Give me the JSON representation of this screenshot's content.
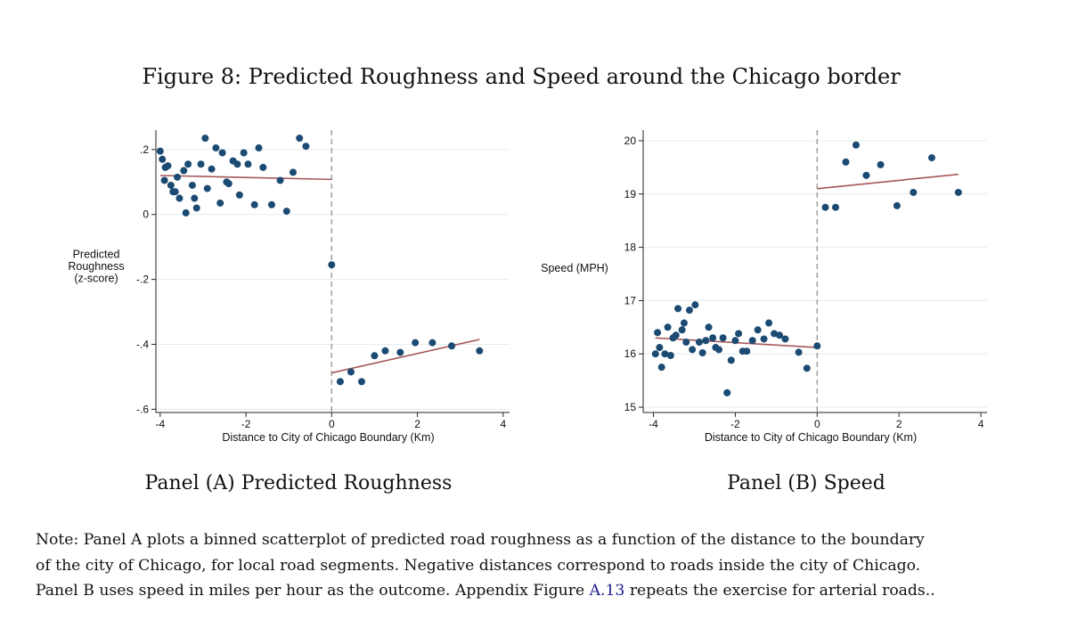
{
  "figure": {
    "title": "Figure 8: Predicted Roughness and Speed around the Chicago border",
    "note_part1": "Note: Panel A plots a binned scatterplot of predicted road roughness as a function of the distance to the boundary",
    "note_part2": "of the city of Chicago, for local road segments. Negative distances correspond to roads inside the city of Chicago.",
    "note_part3_pre": "Panel B uses speed in miles per hour as the outcome. Appendix Figure ",
    "note_link": "A.13",
    "note_part3_post": " repeats the exercise for arterial roads.."
  },
  "chart_data": [
    {
      "type": "scatter",
      "caption": "Panel (A) Predicted Roughness",
      "xlabel": "Distance to City of Chicago Boundary (Km)",
      "ylabel_lines": [
        "Predicted",
        "Roughness",
        "(z-score)"
      ],
      "xlim": [
        -4.1,
        4.15
      ],
      "ylim": [
        -0.61,
        0.26
      ],
      "xticks": [
        -4,
        -2,
        0,
        2,
        4
      ],
      "xtick_labels": [
        "-4",
        "-2",
        "0",
        "2",
        "4"
      ],
      "yticks": [
        -0.6,
        -0.4,
        -0.2,
        0,
        0.2
      ],
      "ytick_labels": [
        "-.6",
        "-.4",
        "-.2",
        "0",
        ".2"
      ],
      "grid": true,
      "cutoff_x": 0,
      "points": [
        [
          -4.0,
          0.195
        ],
        [
          -3.95,
          0.17
        ],
        [
          -3.88,
          0.145
        ],
        [
          -3.82,
          0.15
        ],
        [
          -3.9,
          0.105
        ],
        [
          -3.75,
          0.09
        ],
        [
          -3.7,
          0.07
        ],
        [
          -3.65,
          0.07
        ],
        [
          -3.6,
          0.115
        ],
        [
          -3.55,
          0.05
        ],
        [
          -3.45,
          0.135
        ],
        [
          -3.4,
          0.005
        ],
        [
          -3.35,
          0.155
        ],
        [
          -3.25,
          0.09
        ],
        [
          -3.2,
          0.05
        ],
        [
          -3.15,
          0.02
        ],
        [
          -3.05,
          0.155
        ],
        [
          -2.95,
          0.235
        ],
        [
          -2.9,
          0.08
        ],
        [
          -2.8,
          0.14
        ],
        [
          -2.7,
          0.205
        ],
        [
          -2.6,
          0.035
        ],
        [
          -2.55,
          0.19
        ],
        [
          -2.45,
          0.1
        ],
        [
          -2.4,
          0.095
        ],
        [
          -2.3,
          0.165
        ],
        [
          -2.2,
          0.155
        ],
        [
          -2.15,
          0.06
        ],
        [
          -2.05,
          0.19
        ],
        [
          -1.95,
          0.155
        ],
        [
          -1.8,
          0.03
        ],
        [
          -1.7,
          0.205
        ],
        [
          -1.6,
          0.145
        ],
        [
          -1.4,
          0.03
        ],
        [
          -1.2,
          0.105
        ],
        [
          -1.05,
          0.01
        ],
        [
          -0.9,
          0.13
        ],
        [
          -0.75,
          0.235
        ],
        [
          -0.6,
          0.21
        ],
        [
          0.0,
          -0.155
        ],
        [
          0.2,
          -0.515
        ],
        [
          0.45,
          -0.485
        ],
        [
          0.7,
          -0.515
        ],
        [
          1.0,
          -0.435
        ],
        [
          1.25,
          -0.42
        ],
        [
          1.6,
          -0.425
        ],
        [
          1.95,
          -0.395
        ],
        [
          2.35,
          -0.395
        ],
        [
          2.8,
          -0.405
        ],
        [
          3.45,
          -0.42
        ]
      ],
      "fit_lines": [
        {
          "x": [
            -4.0,
            0.0
          ],
          "y": [
            0.12,
            0.108
          ]
        },
        {
          "x": [
            0.0,
            3.45
          ],
          "y": [
            -0.488,
            -0.385
          ]
        }
      ]
    },
    {
      "type": "scatter",
      "caption": "Panel (B) Speed",
      "xlabel": "Distance to City of Chicago Boundary (Km)",
      "ylabel_lines": [
        "Speed (MPH)"
      ],
      "xlim": [
        -4.25,
        4.15
      ],
      "ylim": [
        14.9,
        20.2
      ],
      "xticks": [
        -4,
        -2,
        0,
        2,
        4
      ],
      "xtick_labels": [
        "-4",
        "-2",
        "0",
        "2",
        "4"
      ],
      "yticks": [
        15,
        16,
        17,
        18,
        19,
        20
      ],
      "ytick_labels": [
        "15",
        "16",
        "17",
        "18",
        "19",
        "20"
      ],
      "grid": true,
      "cutoff_x": 0,
      "points": [
        [
          -3.95,
          16.0
        ],
        [
          -3.9,
          16.4
        ],
        [
          -3.85,
          16.12
        ],
        [
          -3.8,
          15.75
        ],
        [
          -3.72,
          16.0
        ],
        [
          -3.65,
          16.5
        ],
        [
          -3.58,
          15.97
        ],
        [
          -3.52,
          16.3
        ],
        [
          -3.45,
          16.35
        ],
        [
          -3.4,
          16.85
        ],
        [
          -3.3,
          16.45
        ],
        [
          -3.25,
          16.58
        ],
        [
          -3.2,
          16.22
        ],
        [
          -3.12,
          16.82
        ],
        [
          -3.05,
          16.08
        ],
        [
          -2.98,
          16.92
        ],
        [
          -2.88,
          16.22
        ],
        [
          -2.8,
          16.02
        ],
        [
          -2.72,
          16.25
        ],
        [
          -2.65,
          16.5
        ],
        [
          -2.55,
          16.3
        ],
        [
          -2.48,
          16.12
        ],
        [
          -2.4,
          16.08
        ],
        [
          -2.3,
          16.3
        ],
        [
          -2.2,
          15.27
        ],
        [
          -2.1,
          15.88
        ],
        [
          -2.0,
          16.25
        ],
        [
          -1.92,
          16.38
        ],
        [
          -1.82,
          16.05
        ],
        [
          -1.72,
          16.05
        ],
        [
          -1.58,
          16.25
        ],
        [
          -1.45,
          16.45
        ],
        [
          -1.3,
          16.28
        ],
        [
          -1.18,
          16.58
        ],
        [
          -1.05,
          16.38
        ],
        [
          -0.92,
          16.35
        ],
        [
          -0.78,
          16.28
        ],
        [
          -0.45,
          16.03
        ],
        [
          -0.25,
          15.73
        ],
        [
          0.0,
          16.15
        ],
        [
          0.2,
          18.75
        ],
        [
          0.45,
          18.75
        ],
        [
          0.7,
          19.6
        ],
        [
          0.95,
          19.92
        ],
        [
          1.2,
          19.35
        ],
        [
          1.55,
          19.55
        ],
        [
          1.95,
          18.78
        ],
        [
          2.35,
          19.03
        ],
        [
          2.8,
          19.68
        ],
        [
          3.45,
          19.03
        ]
      ],
      "fit_lines": [
        {
          "x": [
            -3.95,
            0.0
          ],
          "y": [
            16.3,
            16.12
          ]
        },
        {
          "x": [
            0.0,
            3.45
          ],
          "y": [
            19.1,
            19.37
          ]
        }
      ]
    }
  ]
}
